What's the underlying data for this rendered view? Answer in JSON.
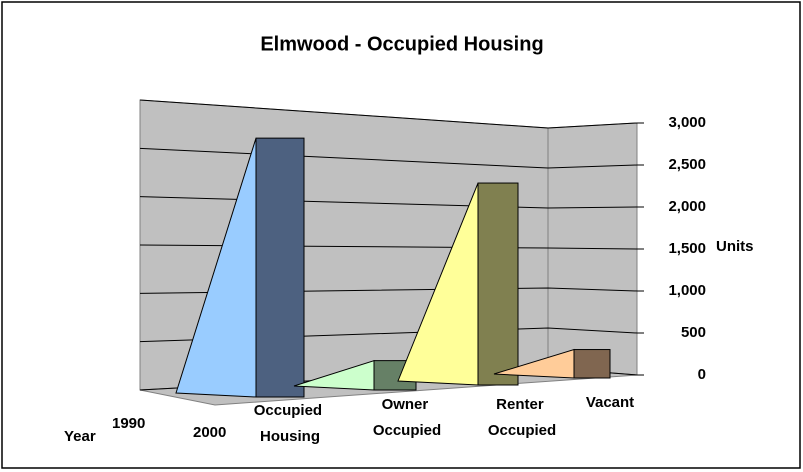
{
  "chart_data": {
    "type": "bar3d",
    "title": "Elmwood - Occupied Housing",
    "categories": [
      "Occupied Housing",
      "Owner Occupied",
      "Renter Occupied",
      "Vacant"
    ],
    "values": [
      2820,
      320,
      2200,
      310
    ],
    "colors_light": [
      "#99ccff",
      "#ccffcc",
      "#ffff99",
      "#ffcc99"
    ],
    "colors_dark": [
      "#4d6180",
      "#668066",
      "#808050",
      "#806650"
    ],
    "depth_categories": [
      "1990",
      "2000"
    ],
    "depth_label": "Year",
    "ylabel": "Units",
    "ylim": [
      0,
      3000
    ],
    "yticks": [
      0,
      {
        "value": 500,
        "label": "500"
      },
      {
        "value": 1000,
        "label": "1,000"
      },
      {
        "value": 1500,
        "label": "1,500"
      },
      {
        "value": 2000,
        "label": "2,000"
      },
      {
        "value": 2500,
        "label": "2,500"
      },
      {
        "value": 3000,
        "label": "3,000"
      }
    ],
    "grid": true
  }
}
